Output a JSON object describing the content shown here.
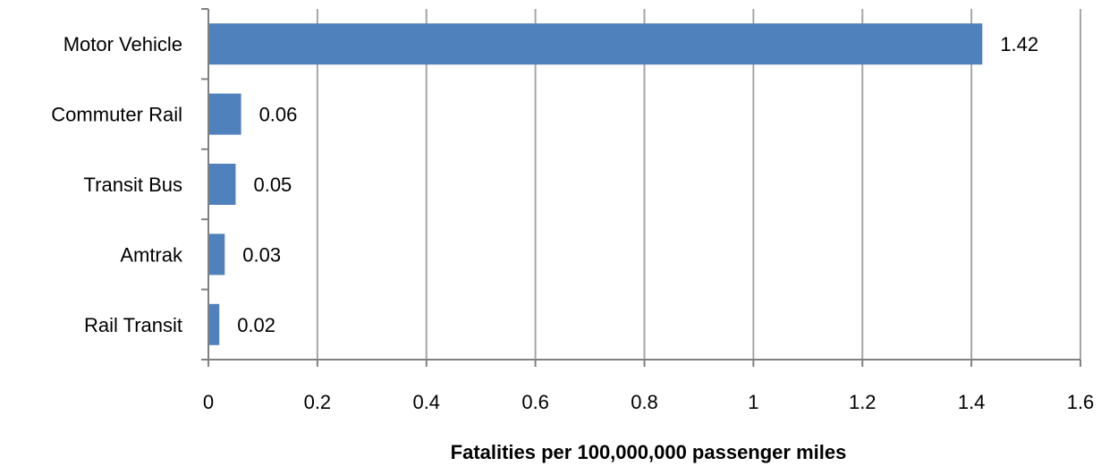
{
  "chart_data": {
    "type": "bar",
    "orientation": "horizontal",
    "title": "",
    "categories": [
      "Motor Vehicle",
      "Commuter Rail",
      "Transit Bus",
      "Amtrak",
      "Rail Transit"
    ],
    "values": [
      1.42,
      0.06,
      0.05,
      0.03,
      0.02
    ],
    "data_labels": [
      "1.42",
      "0.06",
      "0.05",
      "0.03",
      "0.02"
    ],
    "xlabel": "Fatalities per 100,000,000 passenger miles",
    "ylabel": "",
    "xlim": [
      0,
      1.6
    ],
    "x_ticks": [
      0,
      0.2,
      0.4,
      0.6,
      0.8,
      1,
      1.2,
      1.4,
      1.6
    ],
    "x_tick_labels": [
      "0",
      "0.2",
      "0.4",
      "0.6",
      "0.8",
      "1",
      "1.2",
      "1.4",
      "1.6"
    ],
    "grid": "vertical",
    "legend": "none",
    "colors": {
      "bar": "#4f81bd",
      "grid": "#a6a6a6",
      "axis": "#808080",
      "text": "#000000"
    }
  }
}
